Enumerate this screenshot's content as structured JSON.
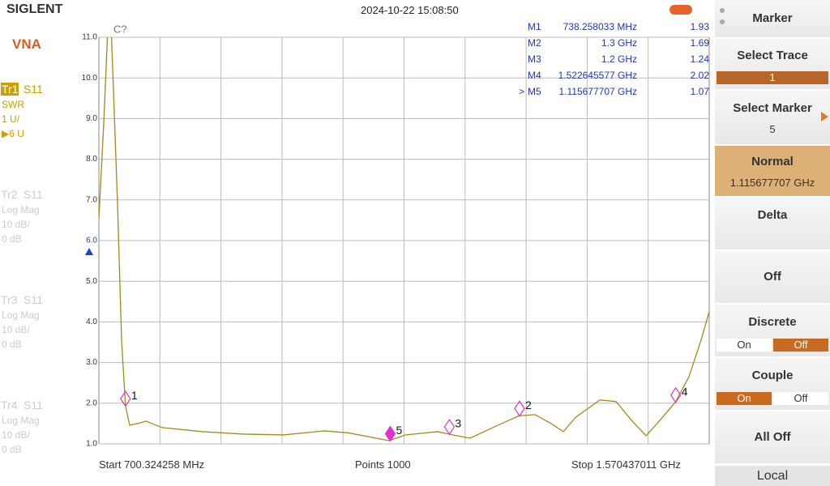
{
  "header": {
    "brand": "SIGLENT",
    "datetime": "2024-10-22 15:08:50"
  },
  "left_panel": {
    "mode": "VNA",
    "traces": [
      {
        "name": "Tr1",
        "param": "S11",
        "format": "SWR",
        "scale": "1 U/",
        "ref": "▶6 U"
      },
      {
        "name": "Tr2",
        "param": "S11",
        "format": "Log Mag",
        "scale": "10 dB/",
        "ref": "0 dB"
      },
      {
        "name": "Tr3",
        "param": "S11",
        "format": "Log Mag",
        "scale": "10 dB/",
        "ref": "0 dB"
      },
      {
        "name": "Tr4",
        "param": "S11",
        "format": "Log Mag",
        "scale": "10 dB/",
        "ref": "0 dB"
      }
    ]
  },
  "footer": {
    "start": "Start  700.324258 MHz",
    "points": "Points  1000",
    "stop": "Stop  1.570437011 GHz"
  },
  "right_panel": {
    "title": "Marker",
    "select_trace": "Select Trace",
    "trace_value": "1",
    "select_marker": "Select Marker",
    "marker_value": "5",
    "normal": "Normal",
    "normal_value": "1.115677707 GHz",
    "delta": "Delta",
    "off": "Off",
    "discrete": "Discrete",
    "discrete_on": "On",
    "discrete_off": "Off",
    "couple": "Couple",
    "couple_on": "On",
    "couple_off": "Off",
    "all_off": "All Off",
    "local": "Local"
  },
  "chart_data": {
    "type": "line",
    "annotation": "C?",
    "xlim": [
      700.324258,
      1570.437011
    ],
    "ylim": [
      1,
      11
    ],
    "yticks": [
      {
        "value": 1,
        "label": "1.0"
      },
      {
        "value": 2,
        "label": "2.0"
      },
      {
        "value": 3,
        "label": "3.0"
      },
      {
        "value": 4,
        "label": "4.0"
      },
      {
        "value": 5,
        "label": "5.0"
      },
      {
        "value": 6,
        "label": "6.0"
      },
      {
        "value": 7,
        "label": "7.0"
      },
      {
        "value": 8,
        "label": "8.0"
      },
      {
        "value": 9,
        "label": "9.0"
      },
      {
        "value": 10,
        "label": "10.0"
      },
      {
        "value": 11,
        "label": "11.0"
      }
    ],
    "reference_level": 6,
    "grid": true,
    "series": [
      {
        "name": "Tr1",
        "color": "#a08a1a",
        "x": [
          700.3,
          707.3,
          713.0,
          717.7,
          721.1,
          726.9,
          732.7,
          738.3,
          744.2,
          755.8,
          767.3,
          790.4,
          848.2,
          906.0,
          963.8,
          1021.5,
          1056.2,
          1114.0,
          1137.1,
          1183.3,
          1199.5,
          1229.5,
          1264.2,
          1298.9,
          1322.0,
          1345.1,
          1362.5,
          1379.8,
          1414.5,
          1437.6,
          1460.7,
          1480.4,
          1501.1,
          1522.0,
          1541.5,
          1558.8,
          1570.4
        ],
        "values": [
          6.54,
          8.9,
          11.2,
          11.3,
          9.7,
          6.9,
          3.55,
          1.93,
          1.46,
          1.5,
          1.56,
          1.4,
          1.3,
          1.24,
          1.22,
          1.32,
          1.27,
          1.08,
          1.22,
          1.3,
          1.24,
          1.14,
          1.42,
          1.69,
          1.72,
          1.5,
          1.3,
          1.65,
          2.08,
          2.04,
          1.56,
          1.2,
          1.6,
          2.02,
          2.65,
          3.55,
          4.25
        ]
      }
    ],
    "markers": [
      {
        "id": "1",
        "label": "M1",
        "freq": "738.258033 MHz",
        "x": 738.258033,
        "value": 1.93
      },
      {
        "id": "2",
        "label": "M2",
        "freq": "1.3 GHz",
        "x": 1300,
        "value": 1.69
      },
      {
        "id": "3",
        "label": "M3",
        "freq": "1.2 GHz",
        "x": 1200,
        "value": 1.24
      },
      {
        "id": "4",
        "label": "M4",
        "freq": "1.522645577 GHz",
        "x": 1522.645577,
        "value": 2.02
      },
      {
        "id": "5",
        "label": "M5",
        "freq": "1.115677707 GHz",
        "x": 1115.677707,
        "value": 1.07,
        "pointer": ">"
      }
    ]
  }
}
